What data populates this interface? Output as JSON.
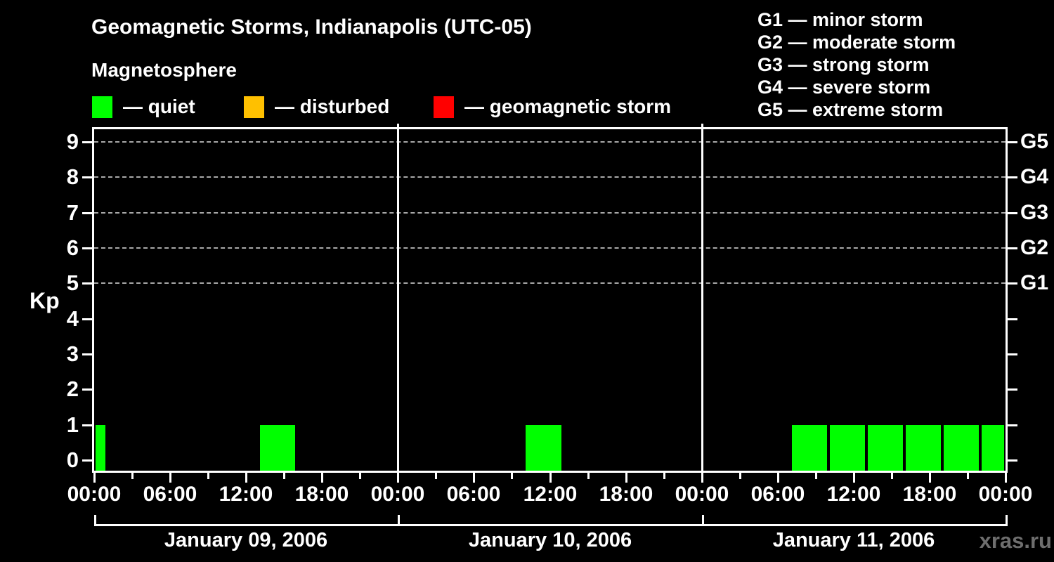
{
  "header": {
    "title": "Geomagnetic Storms, Indianapolis (UTC-05)",
    "subtitle": "Magnetosphere"
  },
  "watermark": {
    "text": "xras.ru",
    "color": "#6e6e6e"
  },
  "condition_legend": [
    {
      "key": "quiet",
      "label": "— quiet",
      "color": "#00ff00"
    },
    {
      "key": "disturbed",
      "label": "— disturbed",
      "color": "#ffc000"
    },
    {
      "key": "storm",
      "label": "— geomagnetic storm",
      "color": "#ff0000"
    }
  ],
  "storm_scale_legend": [
    "G1 — minor storm",
    "G2 — moderate storm",
    "G3 — strong storm",
    "G4 — severe storm",
    "G5 — extreme storm"
  ],
  "chart_data": {
    "type": "bar",
    "title": "Geomagnetic Storms, Indianapolis (UTC-05)",
    "ylabel": "Kp",
    "ylim": [
      -0.35,
      9.4
    ],
    "y_ticks": [
      0,
      1,
      2,
      3,
      4,
      5,
      6,
      7,
      8,
      9
    ],
    "grid_levels": [
      5,
      6,
      7,
      8,
      9
    ],
    "grid_color": "#a9a9a9",
    "right_axis": [
      {
        "kp": 5,
        "label": "G1"
      },
      {
        "kp": 6,
        "label": "G2"
      },
      {
        "kp": 7,
        "label": "G3"
      },
      {
        "kp": 8,
        "label": "G4"
      },
      {
        "kp": 9,
        "label": "G5"
      }
    ],
    "x_tick_step_hours": 3,
    "x_label_step_hours": 6,
    "x_tick_labels": {
      "0": "00:00",
      "6": "06:00",
      "12": "12:00",
      "18": "18:00"
    },
    "colors": {
      "quiet": "#00ff00",
      "disturbed": "#ffc000",
      "storm": "#ff0000"
    },
    "days": [
      {
        "date": "January 09, 2006",
        "bars": [
          {
            "start_hour": 0,
            "end_hour": 1,
            "kp": 1,
            "condition": "quiet"
          },
          {
            "start_hour": 13,
            "end_hour": 16,
            "kp": 1,
            "condition": "quiet"
          }
        ]
      },
      {
        "date": "January 10, 2006",
        "bars": [
          {
            "start_hour": 10,
            "end_hour": 13,
            "kp": 1,
            "condition": "quiet"
          }
        ]
      },
      {
        "date": "January 11, 2006",
        "bars": [
          {
            "start_hour": 7,
            "end_hour": 10,
            "kp": 1,
            "condition": "quiet"
          },
          {
            "start_hour": 10,
            "end_hour": 13,
            "kp": 1,
            "condition": "quiet"
          },
          {
            "start_hour": 13,
            "end_hour": 16,
            "kp": 1,
            "condition": "quiet"
          },
          {
            "start_hour": 16,
            "end_hour": 19,
            "kp": 1,
            "condition": "quiet"
          },
          {
            "start_hour": 19,
            "end_hour": 22,
            "kp": 1,
            "condition": "quiet"
          },
          {
            "start_hour": 22,
            "end_hour": 24,
            "kp": 1,
            "condition": "quiet"
          }
        ]
      }
    ]
  }
}
